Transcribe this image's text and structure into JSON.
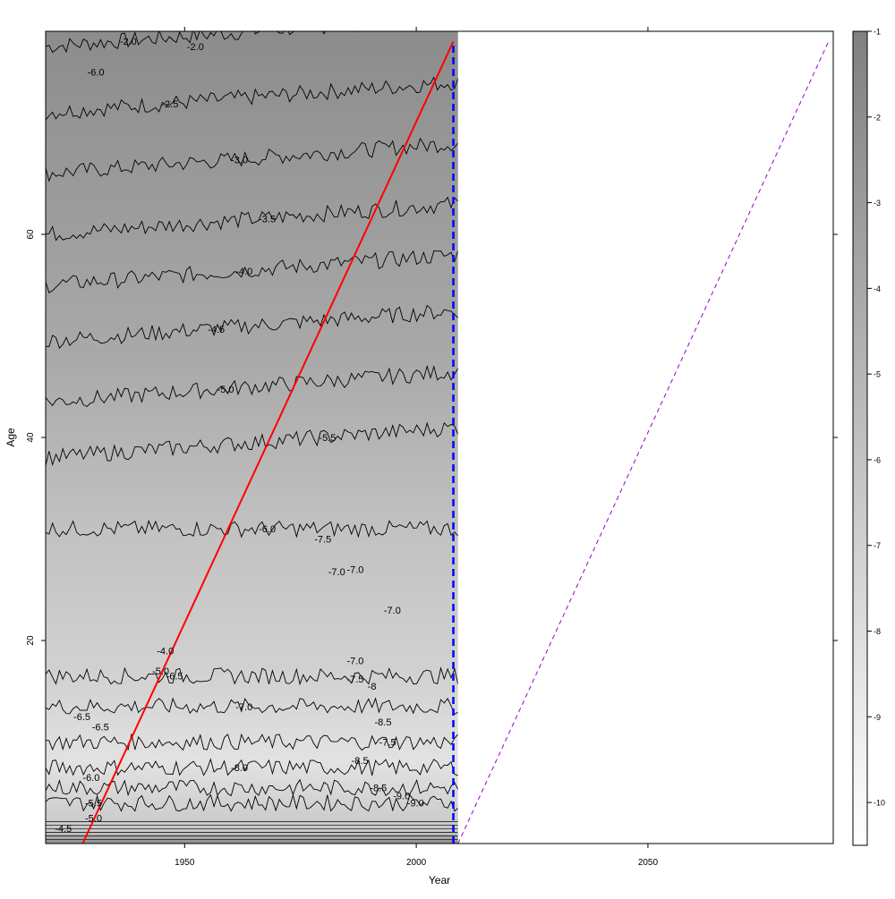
{
  "chart_data": {
    "type": "heatmap",
    "title": "",
    "xlabel": "Year",
    "ylabel": "Age",
    "xlim": [
      1920,
      2090
    ],
    "ylim": [
      0,
      80
    ],
    "data_xlim": [
      1920,
      2009
    ],
    "x_ticks": [
      {
        "value": 1950,
        "label": "1950"
      },
      {
        "value": 2000,
        "label": "2000"
      },
      {
        "value": 2050,
        "label": "2050"
      }
    ],
    "y_ticks": [
      {
        "value": 20,
        "label": "20"
      },
      {
        "value": 40,
        "label": "40"
      },
      {
        "value": 60,
        "label": "60"
      }
    ],
    "colorbar": {
      "range": [
        -10.5,
        -1
      ],
      "ticks": [
        {
          "value": -1,
          "label": "-1"
        },
        {
          "value": -2,
          "label": "-2"
        },
        {
          "value": -3,
          "label": "-3"
        },
        {
          "value": -4,
          "label": "-4"
        },
        {
          "value": -5,
          "label": "-5"
        },
        {
          "value": -6,
          "label": "-6"
        },
        {
          "value": -7,
          "label": "-7"
        },
        {
          "value": -8,
          "label": "-8"
        },
        {
          "value": -9,
          "label": "-9"
        },
        {
          "value": -10,
          "label": "-10"
        }
      ],
      "color_low": "#ffffff",
      "color_high": "#808080"
    },
    "contour_levels": [
      {
        "level": -2.0,
        "age": 78.5,
        "label": "-2.0",
        "label_year": 1936
      },
      {
        "level": -2.5,
        "age": 72,
        "label": "-2.5",
        "label_year": 1945
      },
      {
        "level": -3.0,
        "age": 66,
        "label": "-3.0",
        "label_year": 1960
      },
      {
        "level": -3.5,
        "age": 60,
        "label": "-3.5",
        "label_year": 1966
      },
      {
        "level": -4.0,
        "age": 55,
        "label": "-4.0",
        "label_year": 1961
      },
      {
        "level": -4.5,
        "age": 49.5,
        "label": "-4.5",
        "label_year": 1955
      },
      {
        "level": -5.0,
        "age": 43.5,
        "label": "-5.0",
        "label_year": 1957
      },
      {
        "level": -5.5,
        "age": 38,
        "label": "-5.5",
        "label_year": 1979
      },
      {
        "level": -6.0,
        "age": 31,
        "label": "-6.0",
        "label_year": 1966
      },
      {
        "level": -6.5,
        "age": 16.5,
        "label": "-6.5",
        "label_year": 1946
      },
      {
        "level": -7.0,
        "age": 13.5,
        "label": "-7.0",
        "label_year": 1961
      },
      {
        "level": -7.5,
        "age": 10,
        "label": "-7.5",
        "label_year": 1992
      },
      {
        "level": -8.0,
        "age": 7.5,
        "label": "-8.0",
        "label_year": 1960
      },
      {
        "level": -8.5,
        "age": 5.5,
        "label": "-8.5",
        "label_year": 1990
      },
      {
        "level": -9.0,
        "age": 4,
        "label": "-9.0",
        "label_year": 1998
      }
    ],
    "extra_labels": [
      {
        "label": "-7.0",
        "year": 1981,
        "age": 26.8
      },
      {
        "label": "-7.0",
        "year": 1993,
        "age": 23
      },
      {
        "label": "-7.0",
        "year": 1985,
        "age": 18
      },
      {
        "label": "-7.5",
        "year": 1985,
        "age": 16.2
      },
      {
        "label": "-8",
        "year": 1989.5,
        "age": 15.5
      },
      {
        "label": "-8.5",
        "year": 1991,
        "age": 12
      },
      {
        "label": "-8.5",
        "year": 1986,
        "age": 8.2
      },
      {
        "label": "-9.0",
        "year": 1995,
        "age": 4.7
      },
      {
        "label": "-6.5",
        "year": 1926,
        "age": 12.5
      },
      {
        "label": "-6.5",
        "year": 1930,
        "age": 11.5
      },
      {
        "label": "-7.5",
        "year": 1978,
        "age": 30
      },
      {
        "label": "-4.0",
        "year": 1944,
        "age": 19
      },
      {
        "label": "-5.0",
        "year": 1943,
        "age": 17
      },
      {
        "label": "-6.0",
        "year": 1928,
        "age": 6.5
      },
      {
        "label": "-5.5",
        "year": 1928.5,
        "age": 4
      },
      {
        "label": "-5.0",
        "year": 1928.5,
        "age": 2.5
      },
      {
        "label": "-4.5",
        "year": 1922,
        "age": 1.5
      },
      {
        "label": "-6.0",
        "year": 1929,
        "age": 76
      },
      {
        "label": "-2.0",
        "year": 1950.5,
        "age": 78.5
      },
      {
        "label": "-7.0",
        "year": 1985,
        "age": 27
      }
    ],
    "lines": [
      {
        "name": "",
        "style": "solid",
        "color": "#ff0000",
        "from": [
          1928,
          0
        ],
        "to": [
          2008,
          79
        ]
      },
      {
        "name": "",
        "style": "dashed",
        "color": "#0000ff",
        "from": [
          2008,
          0
        ],
        "to": [
          2008,
          79
        ]
      },
      {
        "name": "",
        "style": "dashed",
        "color": "#9900cc",
        "from": [
          2009,
          0
        ],
        "to": [
          2089,
          79
        ]
      }
    ]
  }
}
